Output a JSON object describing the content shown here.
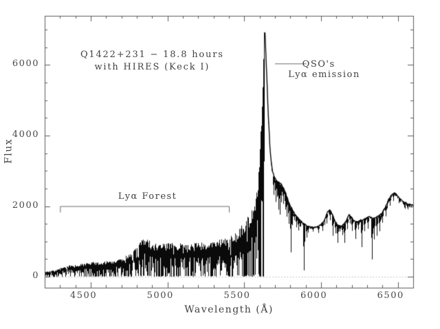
{
  "figure": {
    "background": "#ffffff",
    "frame_color": "#5a5a5a",
    "text_color": "#404040",
    "spectrum_color": "#0a0a0a",
    "annotation_line_color": "#6a6a6a",
    "dotted_zero_line_color": "#b3b3b3"
  },
  "chart_data": {
    "type": "line",
    "title": "Q1422+231 − 18.8 hours with HIRES (Keck I)",
    "title_lines": [
      "Q1422+231 − 18.8 hours",
      "with HIRES (Keck I)"
    ],
    "xlabel": "Wavelength (Å)",
    "ylabel": "Flux",
    "xlim": [
      4200,
      6600
    ],
    "ylim": [
      -310,
      7390
    ],
    "x_major_ticks": [
      4500,
      5000,
      5500,
      6000,
      6500
    ],
    "x_tick_labels": [
      "4500",
      "5000",
      "5500",
      "6000",
      "6500"
    ],
    "x_minor_step": 100,
    "y_major_ticks": [
      0,
      2000,
      4000,
      6000
    ],
    "y_tick_labels": [
      "0",
      "2000",
      "4000",
      "6000"
    ],
    "y_minor_step": 500,
    "grid": false,
    "zero_line": {
      "flux": 0,
      "style": "dotted"
    },
    "peak": {
      "wavelength": 5631,
      "flux": 7060,
      "feature": "QSO Lyα emission"
    },
    "forest_region": {
      "start": 4200,
      "end": 5632,
      "saturated_fraction": 0.42
    },
    "annotations": {
      "title_pos": {
        "x": 4900,
        "y_line1": 6250,
        "y_line2": 5900
      },
      "qso": {
        "lines": [
          "QSO's",
          "Lyα emission"
        ],
        "pointer": {
          "x1": 5700,
          "x2": 5905,
          "y": 6040
        },
        "text_pos": [
          {
            "x": 5985,
            "y": 5980
          },
          {
            "x": 6020,
            "y": 5700
          }
        ]
      },
      "forest": {
        "label": "Lyα Forest",
        "label_pos": {
          "x": 4870,
          "y": 2245
        },
        "bracket": {
          "x1": 4300,
          "x2": 5400,
          "y": 2000,
          "tick_drop_flux": 170
        }
      }
    },
    "series": [
      {
        "name": "continuum_envelope",
        "points": [
          [
            4200,
            140
          ],
          [
            4240,
            165
          ],
          [
            4280,
            200
          ],
          [
            4320,
            280
          ],
          [
            4360,
            320
          ],
          [
            4400,
            335
          ],
          [
            4450,
            365
          ],
          [
            4500,
            410
          ],
          [
            4550,
            425
          ],
          [
            4600,
            445
          ],
          [
            4650,
            475
          ],
          [
            4700,
            525
          ],
          [
            4730,
            590
          ],
          [
            4760,
            680
          ],
          [
            4790,
            810
          ],
          [
            4820,
            960
          ],
          [
            4850,
            1130
          ],
          [
            4880,
            1010
          ],
          [
            4910,
            935
          ],
          [
            4950,
            905
          ],
          [
            5000,
            935
          ],
          [
            5050,
            955
          ],
          [
            5100,
            940
          ],
          [
            5150,
            930
          ],
          [
            5200,
            945
          ],
          [
            5250,
            965
          ],
          [
            5300,
            995
          ],
          [
            5350,
            1060
          ],
          [
            5400,
            1135
          ],
          [
            5450,
            1265
          ],
          [
            5500,
            1530
          ],
          [
            5530,
            1760
          ],
          [
            5560,
            2120
          ],
          [
            5580,
            2620
          ],
          [
            5595,
            3300
          ],
          [
            5605,
            4250
          ],
          [
            5615,
            5350
          ],
          [
            5622,
            6350
          ],
          [
            5628,
            6900
          ],
          [
            5631,
            7060
          ],
          [
            5634,
            6800
          ],
          [
            5640,
            6150
          ],
          [
            5648,
            5250
          ],
          [
            5656,
            4400
          ],
          [
            5664,
            3750
          ],
          [
            5672,
            3300
          ],
          [
            5682,
            2980
          ],
          [
            5695,
            2800
          ],
          [
            5710,
            2720
          ],
          [
            5725,
            2660
          ],
          [
            5740,
            2600
          ],
          [
            5755,
            2500
          ],
          [
            5770,
            2330
          ],
          [
            5785,
            2140
          ],
          [
            5800,
            1990
          ],
          [
            5820,
            1820
          ],
          [
            5840,
            1700
          ],
          [
            5860,
            1600
          ],
          [
            5880,
            1520
          ],
          [
            5900,
            1460
          ],
          [
            5925,
            1415
          ],
          [
            5950,
            1400
          ],
          [
            5975,
            1415
          ],
          [
            6000,
            1490
          ],
          [
            6020,
            1610
          ],
          [
            6040,
            1840
          ],
          [
            6055,
            1895
          ],
          [
            6070,
            1780
          ],
          [
            6090,
            1560
          ],
          [
            6110,
            1450
          ],
          [
            6130,
            1435
          ],
          [
            6150,
            1505
          ],
          [
            6165,
            1625
          ],
          [
            6180,
            1765
          ],
          [
            6195,
            1685
          ],
          [
            6215,
            1575
          ],
          [
            6235,
            1555
          ],
          [
            6255,
            1600
          ],
          [
            6275,
            1625
          ],
          [
            6295,
            1680
          ],
          [
            6315,
            1700
          ],
          [
            6335,
            1655
          ],
          [
            6355,
            1680
          ],
          [
            6375,
            1725
          ],
          [
            6395,
            1810
          ],
          [
            6415,
            1960
          ],
          [
            6435,
            2160
          ],
          [
            6455,
            2300
          ],
          [
            6475,
            2380
          ],
          [
            6490,
            2330
          ],
          [
            6510,
            2220
          ],
          [
            6530,
            2130
          ],
          [
            6550,
            2090
          ],
          [
            6575,
            2050
          ],
          [
            6600,
            2010
          ]
        ]
      }
    ],
    "absorption_lines": [
      [
        5690,
        2320
      ],
      [
        5703,
        2120
      ],
      [
        5713,
        2260
      ],
      [
        5722,
        1900
      ],
      [
        5731,
        1760
      ],
      [
        5742,
        2110
      ],
      [
        5753,
        2060
      ],
      [
        5766,
        1900
      ],
      [
        5777,
        1700
      ],
      [
        5790,
        1500
      ],
      [
        5801,
        690
      ],
      [
        5813,
        1460
      ],
      [
        5825,
        1600
      ],
      [
        5838,
        1400
      ],
      [
        5852,
        1310
      ],
      [
        5866,
        1420
      ],
      [
        5890,
        180
      ],
      [
        5904,
        1110
      ],
      [
        5917,
        1250
      ],
      [
        5946,
        1280
      ],
      [
        5981,
        1240
      ],
      [
        6008,
        1300
      ],
      [
        6036,
        1510
      ],
      [
        6058,
        1600
      ],
      [
        6076,
        1160
      ],
      [
        6092,
        1230
      ],
      [
        6106,
        960
      ],
      [
        6122,
        1280
      ],
      [
        6138,
        1180
      ],
      [
        6152,
        960
      ],
      [
        6168,
        1350
      ],
      [
        6186,
        1510
      ],
      [
        6203,
        1300
      ],
      [
        6222,
        1070
      ],
      [
        6243,
        1340
      ],
      [
        6263,
        840
      ],
      [
        6283,
        1290
      ],
      [
        6305,
        1360
      ],
      [
        6331,
        490
      ],
      [
        6346,
        1060
      ],
      [
        6361,
        1160
      ],
      [
        6379,
        1290
      ],
      [
        6398,
        1530
      ],
      [
        6421,
        1710
      ],
      [
        6449,
        2010
      ],
      [
        6472,
        2160
      ],
      [
        6541,
        1960
      ],
      [
        6563,
        1910
      ]
    ]
  }
}
